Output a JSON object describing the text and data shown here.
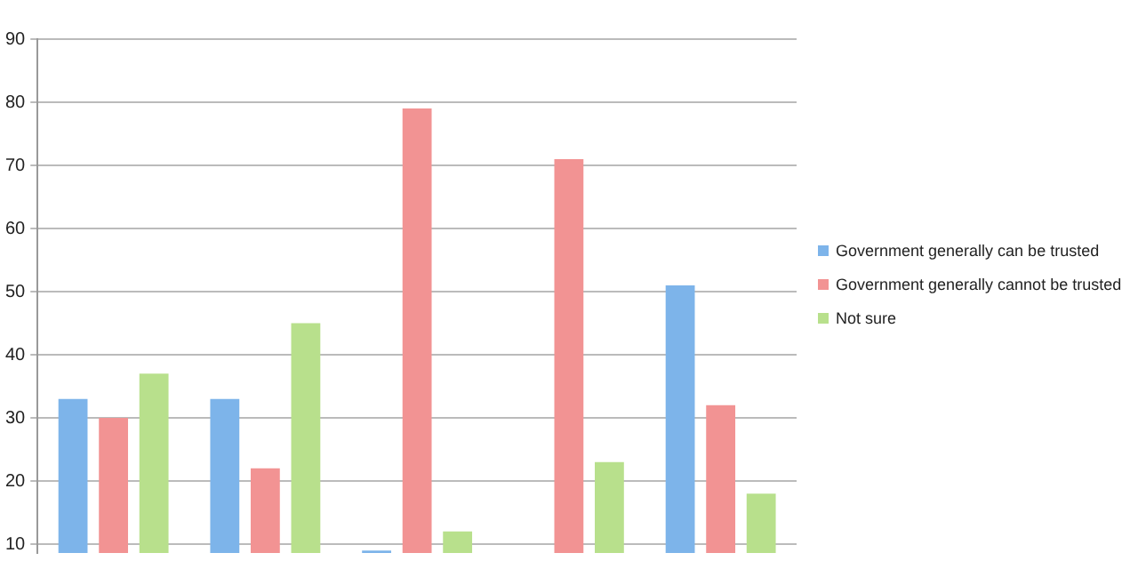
{
  "chart_data": {
    "type": "bar",
    "categories": [
      null,
      null,
      null,
      null,
      null
    ],
    "series": [
      {
        "name": "Government generally can be trusted",
        "color": "#7db4ea",
        "values": [
          33,
          33,
          9,
          null,
          51
        ]
      },
      {
        "name": "Government generally cannot be trusted",
        "color": "#f29393",
        "values": [
          30,
          22,
          79,
          71,
          32
        ]
      },
      {
        "name": "Not sure",
        "color": "#b8e08c",
        "values": [
          37,
          45,
          12,
          23,
          18
        ]
      }
    ],
    "ylim": [
      8.6,
      90
    ],
    "yticks": [
      10,
      20,
      30,
      40,
      50,
      60,
      70,
      80,
      90
    ],
    "grid": "y",
    "legend": "right"
  }
}
